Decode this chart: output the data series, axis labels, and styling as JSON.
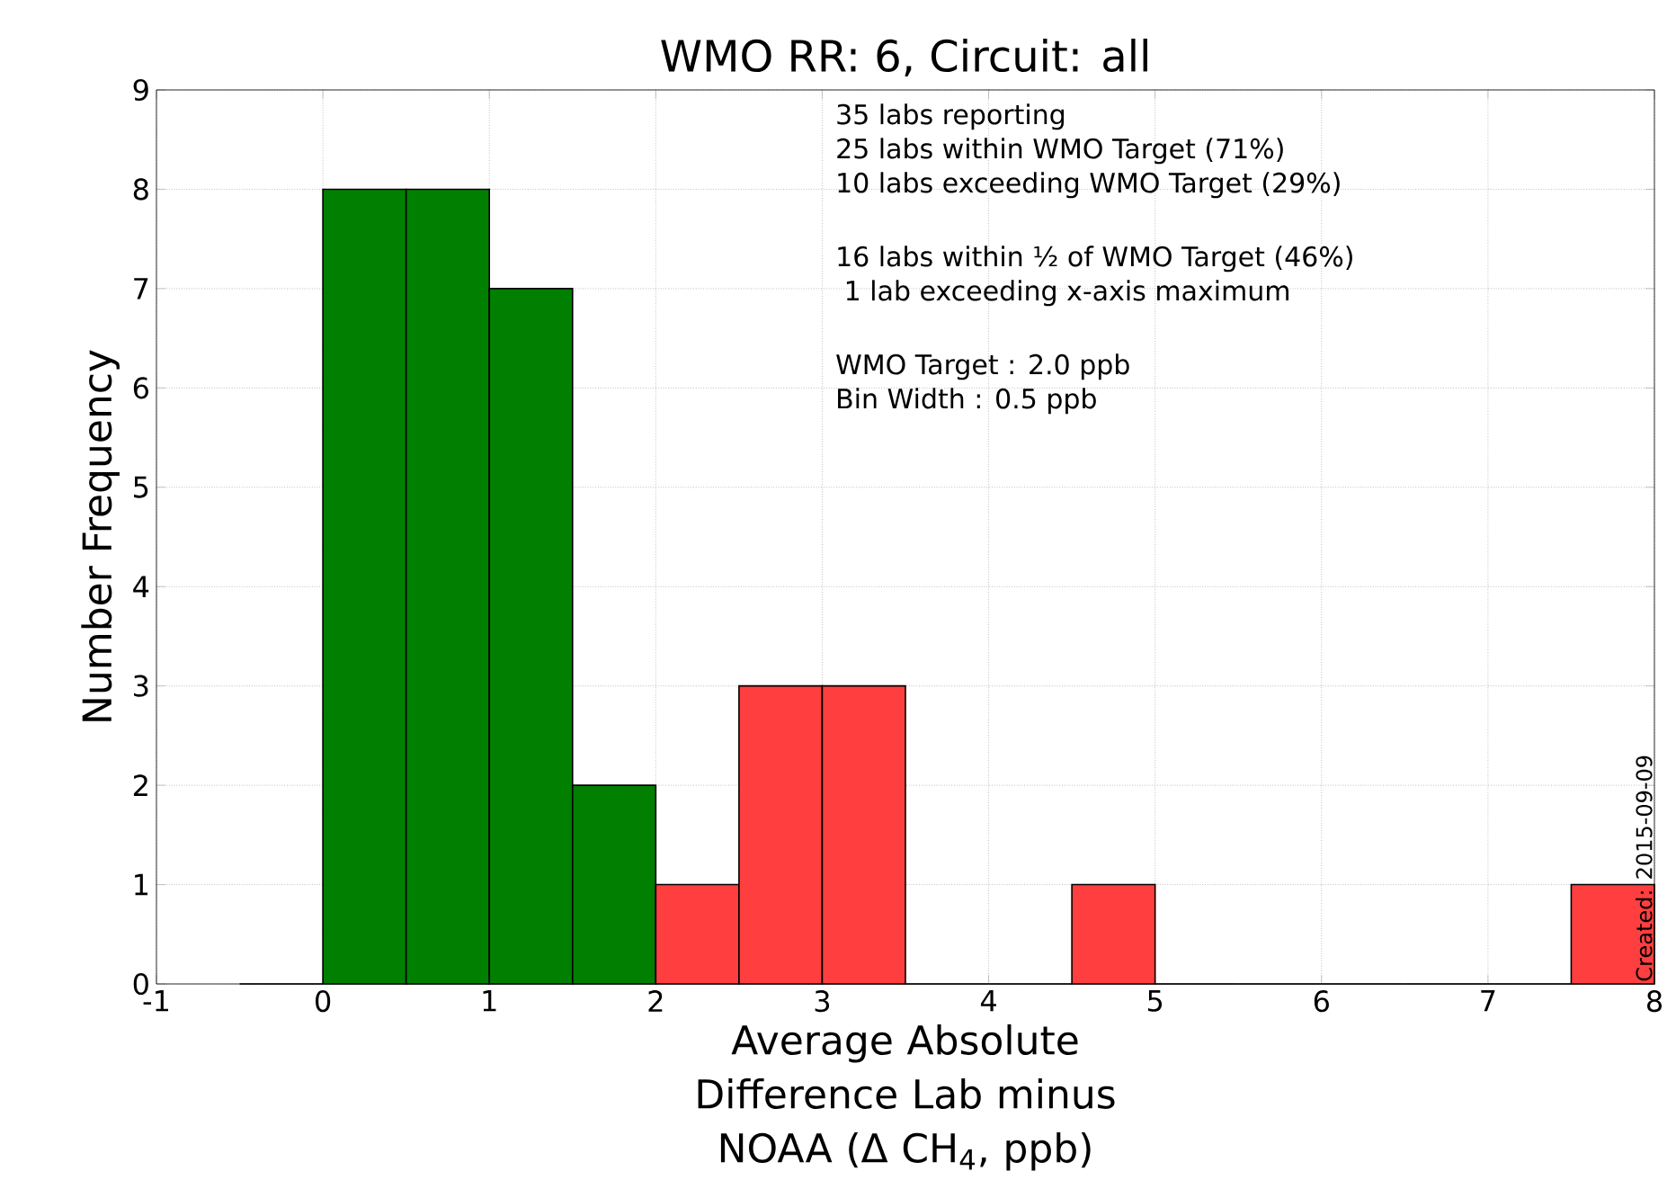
{
  "chart_data": {
    "type": "histogram",
    "title": "WMO RR: 6, Circuit: all",
    "xlabel": "Average Absolute Difference Lab minus NOAA (Δ CH$_{4}$, ppb)",
    "ylabel": "Number Frequency",
    "bins": [
      -0.5,
      0,
      0.5,
      1,
      1.5,
      2,
      2.5,
      3,
      3.5,
      4,
      4.5,
      5,
      5.5,
      6,
      6.5,
      7,
      7.5,
      8
    ],
    "values": [
      0,
      8,
      8,
      7,
      2,
      1,
      3,
      3,
      0,
      0,
      1,
      0,
      0,
      0,
      0,
      0,
      1
    ],
    "colors": [
      "#007f00",
      "#007f00",
      "#007f00",
      "#007f00",
      "#007f00",
      "#ff3f3f",
      "#ff3f3f",
      "#ff3f3f",
      "#ff3f3f",
      "#ff3f3f",
      "#ff3f3f",
      "#ff3f3f",
      "#ff3f3f",
      "#ff3f3f",
      "#ff3f3f",
      "#ff3f3f",
      "#ff3f3f"
    ],
    "xlim": [
      -1,
      8
    ],
    "ylim": [
      0,
      9
    ],
    "xticks": [
      -1,
      0,
      1,
      2,
      3,
      4,
      5,
      6,
      7,
      8
    ],
    "yticks": [
      0,
      1,
      2,
      3,
      4,
      5,
      6,
      7,
      8,
      9
    ],
    "grid": true,
    "annotations": [
      "35  labs reporting",
      "25  labs within WMO Target (71%)",
      "10  labs exceeding WMO Target (29%)",
      "16  labs within ½ of WMO Target (46%)",
      " 1  lab exceeding x-axis maximum",
      "WMO Target : 2.0 ppb",
      "Bin Width : 0.5 ppb",
      "Created: 2015-09-09"
    ]
  }
}
